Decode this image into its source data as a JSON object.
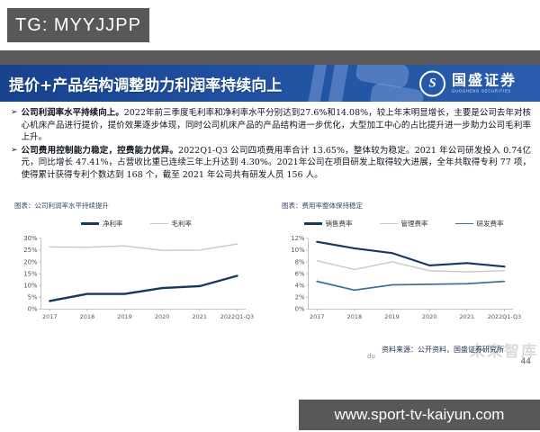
{
  "overlay": {
    "tg_label": "TG: MYYJJPP",
    "url_label": "www.sport-tv-kaiyun.com"
  },
  "header": {
    "title": "提价+产品结构调整助力利润率持续向上",
    "logo_monogram": "S",
    "logo_text": "国盛证券",
    "logo_subtext": "GUOSHENG SECURITIES"
  },
  "bullets": [
    {
      "marker": "➢",
      "lead": "公司利润率水平持续向上。",
      "body": "2022年前三季度毛利率和净利率水平分别达到27.6%和14.08%，较上年末明显增长，主要是公司去年对核心机床产品进行提价，提价效果逐步体现，同时公司机床产品的产品结构进一步优化，大型加工中心的占比提升进一步助力公司毛利率上升。"
    },
    {
      "marker": "➢",
      "lead": "公司费用控制能力稳定，控费能力优异。",
      "body": "2022Q1-Q3 公司四项费用率合计 13.65%，整体较为稳定。2021 年公司研发投入 0.74亿元，同比增长 47.41%，占营收比重已连续三年上升达到 4.30%。2021年公司在项目研发上取得较大进展，全年共取得专利 77 项，使得累计获得专利个数达到 168 个，截至 2021 年公司共有研发人员 156 人。"
    }
  ],
  "footer": {
    "source": "资料来源：公开资料，国盛证券研究所",
    "watermark": "未来智库",
    "watermark_small": "du",
    "page_number": "44"
  },
  "chart_data": [
    {
      "type": "line",
      "title": "图表：公司利润率水平持续提升",
      "categories": [
        "2017",
        "2018",
        "2019",
        "2020",
        "2021",
        "2022Q1-Q3"
      ],
      "series": [
        {
          "name": "净利率",
          "color": "#17375e",
          "width": 2.4,
          "values": [
            3.4,
            6.4,
            6.4,
            8.9,
            9.7,
            14.08
          ]
        },
        {
          "name": "毛利率",
          "color": "#c8c8c8",
          "width": 1.4,
          "values": [
            26.3,
            26.2,
            26.8,
            24.9,
            25.0,
            27.6
          ]
        }
      ],
      "ylim": [
        0,
        30
      ],
      "ytick_step": 5,
      "ytick_suffix": "%",
      "grid": false,
      "legend_position": "top"
    },
    {
      "type": "line",
      "title": "图表：费用率整体保持稳定",
      "categories": [
        "2017",
        "2018",
        "2019",
        "2020",
        "2021",
        "2022Q1-Q3"
      ],
      "series": [
        {
          "name": "销售费率",
          "color": "#17375e",
          "width": 2.2,
          "values": [
            11.4,
            10.3,
            9.5,
            7.4,
            7.8,
            7.2
          ]
        },
        {
          "name": "管理费率",
          "color": "#c8c8c8",
          "width": 1.4,
          "values": [
            8.2,
            6.7,
            8.0,
            6.5,
            6.3,
            6.5
          ]
        },
        {
          "name": "研发费率",
          "color": "#41719c",
          "width": 1.8,
          "values": [
            4.7,
            3.2,
            4.1,
            4.2,
            4.3,
            4.7
          ]
        }
      ],
      "ylim": [
        0,
        12
      ],
      "ytick_step": 2,
      "ytick_suffix": "%",
      "grid": false,
      "legend_position": "top"
    }
  ]
}
